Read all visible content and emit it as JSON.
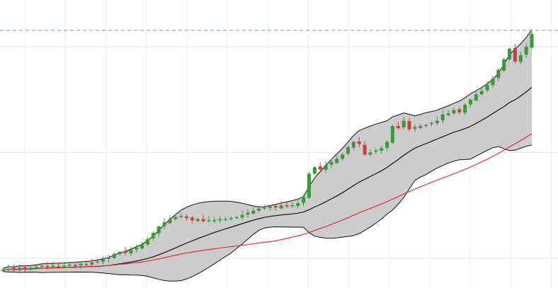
{
  "chart_data": {
    "type": "candlestick",
    "title": "",
    "xlabel": "",
    "ylabel": "",
    "ylim": [
      71.9,
      344.1
    ],
    "grid": true,
    "y_gridlines": [
      100,
      200,
      300
    ],
    "reference_line": {
      "value": 315.4,
      "style": "dashed",
      "color": "#6aaa6a"
    },
    "indicators": {
      "bollinger": {
        "period": 20,
        "std": 2,
        "fill": "#cccccc",
        "stroke": "#111111"
      },
      "moving_average": {
        "period": 50,
        "color": "#e82020"
      }
    },
    "colors": {
      "up": "#3a9a3a",
      "down": "#d03c3c"
    },
    "close": [
      89,
      90,
      89,
      91,
      90,
      91,
      92,
      93,
      92,
      93,
      92,
      93,
      94,
      93,
      95,
      94,
      96,
      97,
      99,
      101,
      104,
      106,
      105,
      108,
      110,
      113,
      118,
      124,
      130,
      134,
      137,
      139,
      140,
      138,
      136,
      137,
      135,
      136,
      136,
      137,
      137,
      138,
      139,
      141,
      143,
      145,
      147,
      148,
      149,
      148,
      150,
      149,
      150,
      152,
      158,
      180,
      186,
      184,
      188,
      191,
      194,
      198,
      205,
      210,
      208,
      198,
      200,
      202,
      204,
      210,
      225,
      223,
      230,
      222,
      224,
      225,
      226,
      228,
      230,
      236,
      237,
      240,
      238,
      245,
      250,
      255,
      258,
      264,
      270,
      278,
      288,
      298,
      286,
      292,
      300,
      312
    ]
  }
}
